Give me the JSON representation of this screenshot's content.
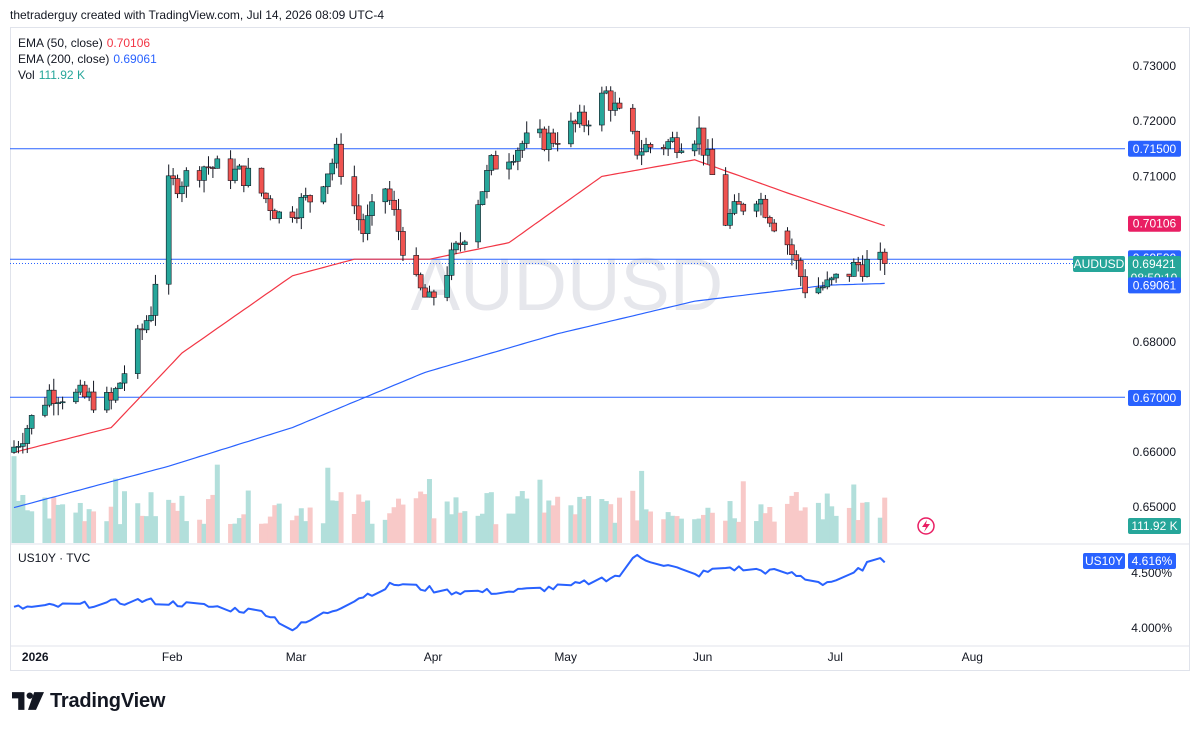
{
  "header": {
    "caption": "thetraderguy created with TradingView.com, Jul 14, 2026 08:09 UTC-4"
  },
  "legend": {
    "ema50": {
      "label": "EMA (50, close)",
      "value": "0.70106",
      "color": "#e91e63"
    },
    "ema200": {
      "label": "EMA (200, close)",
      "value": "0.69061",
      "color": "#2962ff"
    },
    "vol": {
      "label": "Vol",
      "value": "111.92 K",
      "color": "#26a69a"
    }
  },
  "watermark": "AUDUSD",
  "brand": {
    "name": "TradingView"
  },
  "lower_pane": {
    "label": "US10Y · TVC",
    "badge_symbol": "US10Y",
    "badge_value": "4.616%"
  },
  "price_axis": {
    "ticks": [
      "0.73000",
      "0.72000",
      "0.71000",
      "0.70000",
      "0.69000",
      "0.68000",
      "0.66000",
      "0.65000"
    ],
    "symbol_tag": "AUDUSD",
    "last_price": "0.69421",
    "countdown": "08:50:10",
    "vol_badge": "111.92 K"
  },
  "lower_axis": {
    "ticks": [
      "4.500%",
      "4.000%"
    ]
  },
  "time_axis": {
    "ticks": [
      "2026",
      "Feb",
      "Mar",
      "Apr",
      "May",
      "Jun",
      "Jul",
      "Aug"
    ]
  },
  "colors": {
    "up": "#26a69a",
    "down": "#ef5350",
    "hline": "#2962ff",
    "ema50": "#f23645",
    "ema200": "#2962ff",
    "us10y": "#2962ff"
  },
  "chart_data": [
    {
      "type": "candlestick",
      "symbol": "AUDUSD",
      "timeframe": "daily",
      "x_range": [
        "2025-12-29",
        "2026-07-14"
      ],
      "ylim": [
        0.645,
        0.733
      ],
      "horizontal_levels": [
        {
          "value": 0.715,
          "label": "0.71500"
        },
        {
          "value": 0.695,
          "label": "0.69500"
        },
        {
          "value": 0.67,
          "label": "0.67000"
        }
      ],
      "price_anchors": [
        {
          "date": "2025-12-29",
          "close": 0.661
        },
        {
          "date": "2026-01-06",
          "close": 0.671
        },
        {
          "date": "2026-01-20",
          "close": 0.669
        },
        {
          "date": "2026-01-29",
          "close": 0.686
        },
        {
          "date": "2026-02-02",
          "close": 0.708
        },
        {
          "date": "2026-02-10",
          "close": 0.712
        },
        {
          "date": "2026-02-20",
          "close": 0.71
        },
        {
          "date": "2026-02-27",
          "close": 0.703
        },
        {
          "date": "2026-03-06",
          "close": 0.706
        },
        {
          "date": "2026-03-12",
          "close": 0.714
        },
        {
          "date": "2026-03-18",
          "close": 0.7
        },
        {
          "date": "2026-03-23",
          "close": 0.708
        },
        {
          "date": "2026-03-30",
          "close": 0.69
        },
        {
          "date": "2026-04-02",
          "close": 0.687
        },
        {
          "date": "2026-04-09",
          "close": 0.698
        },
        {
          "date": "2026-04-16",
          "close": 0.712
        },
        {
          "date": "2026-04-23",
          "close": 0.716
        },
        {
          "date": "2026-04-30",
          "close": 0.717
        },
        {
          "date": "2026-05-07",
          "close": 0.72
        },
        {
          "date": "2026-05-12",
          "close": 0.725
        },
        {
          "date": "2026-05-19",
          "close": 0.715
        },
        {
          "date": "2026-05-26",
          "close": 0.716
        },
        {
          "date": "2026-06-02",
          "close": 0.718
        },
        {
          "date": "2026-06-08",
          "close": 0.702
        },
        {
          "date": "2026-06-15",
          "close": 0.707
        },
        {
          "date": "2026-06-22",
          "close": 0.698
        },
        {
          "date": "2026-06-26",
          "close": 0.69
        },
        {
          "date": "2026-07-01",
          "close": 0.69
        },
        {
          "date": "2026-07-08",
          "close": 0.694
        },
        {
          "date": "2026-07-14",
          "close": 0.69421
        }
      ],
      "ema50_anchors": [
        {
          "date": "2025-12-29",
          "value": 0.66
        },
        {
          "date": "2026-01-20",
          "value": 0.6645
        },
        {
          "date": "2026-02-05",
          "value": 0.678
        },
        {
          "date": "2026-03-02",
          "value": 0.692
        },
        {
          "date": "2026-03-16",
          "value": 0.695
        },
        {
          "date": "2026-04-02",
          "value": 0.695
        },
        {
          "date": "2026-04-20",
          "value": 0.698
        },
        {
          "date": "2026-05-11",
          "value": 0.71
        },
        {
          "date": "2026-06-01",
          "value": 0.713
        },
        {
          "date": "2026-06-22",
          "value": 0.707
        },
        {
          "date": "2026-07-14",
          "value": 0.70106
        }
      ],
      "ema200_anchors": [
        {
          "date": "2025-12-29",
          "value": 0.65
        },
        {
          "date": "2026-02-02",
          "value": 0.6575
        },
        {
          "date": "2026-03-02",
          "value": 0.6645
        },
        {
          "date": "2026-04-01",
          "value": 0.6745
        },
        {
          "date": "2026-05-01",
          "value": 0.6815
        },
        {
          "date": "2026-06-01",
          "value": 0.6874
        },
        {
          "date": "2026-07-01",
          "value": 0.6903
        },
        {
          "date": "2026-07-14",
          "value": 0.69061
        }
      ],
      "last_close": 0.69421,
      "ema50_last": 0.70106,
      "ema200_last": 0.69061,
      "volume_last": "111.92 K"
    },
    {
      "type": "line",
      "symbol": "US10Y",
      "ylim": [
        3.82,
        4.8
      ],
      "series": [
        {
          "date_anchors": [
            {
              "date": "2025-12-29",
              "value": 4.18
            },
            {
              "date": "2026-01-14",
              "value": 4.21
            },
            {
              "date": "2026-01-27",
              "value": 4.25
            },
            {
              "date": "2026-02-10",
              "value": 4.2
            },
            {
              "date": "2026-02-24",
              "value": 4.14
            },
            {
              "date": "2026-03-02",
              "value": 3.99
            },
            {
              "date": "2026-03-16",
              "value": 4.26
            },
            {
              "date": "2026-03-25",
              "value": 4.4
            },
            {
              "date": "2026-04-06",
              "value": 4.33
            },
            {
              "date": "2026-04-20",
              "value": 4.33
            },
            {
              "date": "2026-05-04",
              "value": 4.38
            },
            {
              "date": "2026-05-15",
              "value": 4.48
            },
            {
              "date": "2026-05-19",
              "value": 4.66
            },
            {
              "date": "2026-06-01",
              "value": 4.48
            },
            {
              "date": "2026-06-08",
              "value": 4.55
            },
            {
              "date": "2026-06-22",
              "value": 4.5
            },
            {
              "date": "2026-06-30",
              "value": 4.41
            },
            {
              "date": "2026-07-06",
              "value": 4.46
            },
            {
              "date": "2026-07-10",
              "value": 4.58
            },
            {
              "date": "2026-07-14",
              "value": 4.616
            }
          ]
        }
      ],
      "y_ticks": [
        "4.500%",
        "4.000%"
      ],
      "last": "4.616%"
    }
  ]
}
